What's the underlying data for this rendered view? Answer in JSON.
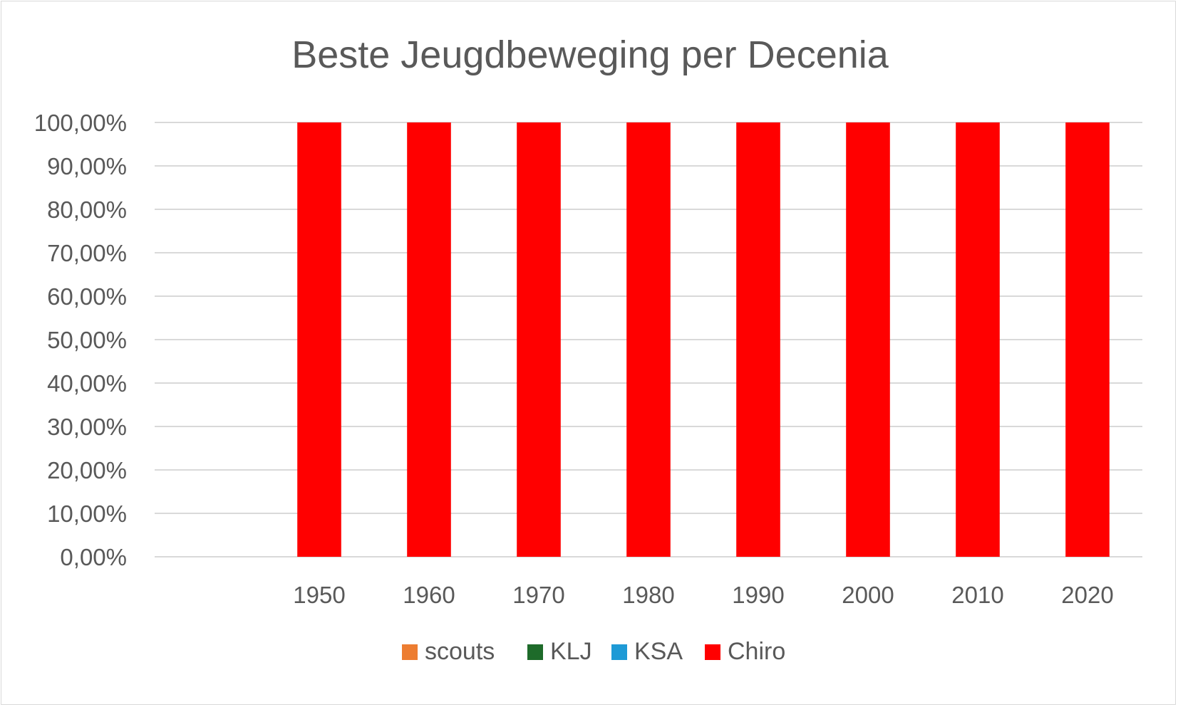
{
  "chart_data": {
    "type": "bar",
    "stacked": true,
    "title": "Beste Jeugdbeweging per Decenia",
    "xlabel": "",
    "ylabel": "",
    "categories": [
      "",
      "1950",
      "1960",
      "1970",
      "1980",
      "1990",
      "2000",
      "2010",
      "2020"
    ],
    "y_ticks": [
      "0,00%",
      "10,00%",
      "20,00%",
      "30,00%",
      "40,00%",
      "50,00%",
      "60,00%",
      "70,00%",
      "80,00%",
      "90,00%",
      "100,00%"
    ],
    "ylim": [
      0,
      1
    ],
    "grid": true,
    "legend_position": "bottom",
    "series": [
      {
        "name": "scouts",
        "color": "#ed7d31",
        "values": [
          0,
          0,
          0,
          0,
          0,
          0,
          0,
          0,
          0
        ]
      },
      {
        "name": "KLJ",
        "color": "#1e6b2a",
        "values": [
          0,
          0,
          0,
          0,
          0,
          0,
          0,
          0,
          0
        ]
      },
      {
        "name": "KSA",
        "color": "#1e9ad6",
        "values": [
          0,
          0,
          0,
          0,
          0,
          0,
          0,
          0,
          0
        ]
      },
      {
        "name": "Chiro",
        "color": "#ff0000",
        "values": [
          0,
          1,
          1,
          1,
          1,
          1,
          1,
          1,
          1
        ]
      }
    ]
  }
}
